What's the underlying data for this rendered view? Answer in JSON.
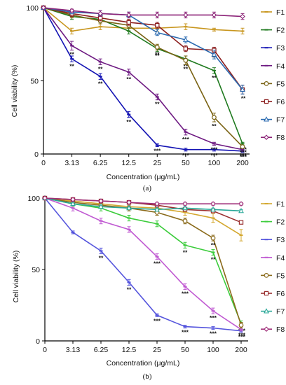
{
  "chart_data": [
    {
      "type": "line",
      "panel_label": "(a)",
      "xlabel": "Concentration (μg/mL)",
      "ylabel": "Cell viability (%)",
      "categories": [
        "0",
        "3.13",
        "6.25",
        "12.5",
        "25",
        "50",
        "100",
        "200"
      ],
      "ylim": [
        0,
        100
      ],
      "yticks": [
        0,
        50,
        100
      ],
      "grid": false,
      "legend_position": "right",
      "series": [
        {
          "name": "F1",
          "color": "#c8961e",
          "marker": "line",
          "values": [
            100,
            84,
            87,
            86,
            86,
            87,
            85,
            84
          ],
          "errors": [
            0,
            2,
            2,
            2,
            2,
            2,
            1,
            2
          ],
          "labels": [
            "",
            "",
            "",
            "",
            "",
            "",
            "",
            ""
          ]
        },
        {
          "name": "F2",
          "color": "#1f7a1f",
          "marker": "line",
          "values": [
            100,
            94,
            92,
            84,
            72,
            65,
            57,
            7
          ],
          "errors": [
            0,
            2,
            2,
            2,
            2,
            2,
            2,
            1
          ],
          "labels": [
            "",
            "",
            "",
            "",
            "**",
            "**",
            "**",
            "***"
          ]
        },
        {
          "name": "F3",
          "color": "#1414b4",
          "marker": "line",
          "values": [
            100,
            65,
            53,
            27,
            6,
            3,
            3,
            2
          ],
          "errors": [
            0,
            2,
            2,
            2,
            1,
            1,
            1,
            1
          ],
          "labels": [
            "",
            "**",
            "**",
            "**",
            "***",
            "***",
            "***",
            "***"
          ]
        },
        {
          "name": "F4",
          "color": "#6e1a82",
          "marker": "line",
          "values": [
            100,
            74,
            63,
            56,
            39,
            15,
            7,
            3
          ],
          "errors": [
            0,
            3,
            2,
            2,
            2,
            2,
            1,
            1
          ],
          "labels": [
            "",
            "**",
            "**",
            "**",
            "**",
            "***",
            "***",
            "***"
          ]
        },
        {
          "name": "F5",
          "color": "#7a6314",
          "marker": "circle",
          "values": [
            100,
            95,
            91,
            88,
            73,
            64,
            25,
            5
          ],
          "errors": [
            0,
            2,
            2,
            2,
            2,
            3,
            3,
            1
          ],
          "labels": [
            "",
            "",
            "",
            "",
            "**",
            "**",
            "**",
            "***"
          ]
        },
        {
          "name": "F6",
          "color": "#8c1e1e",
          "marker": "square",
          "values": [
            100,
            96,
            93,
            90,
            88,
            72,
            71,
            44
          ],
          "errors": [
            0,
            2,
            2,
            2,
            2,
            2,
            2,
            3
          ],
          "labels": [
            "",
            "",
            "",
            "",
            "",
            "",
            "**",
            "**"
          ]
        },
        {
          "name": "F7",
          "color": "#2a6ab0",
          "marker": "triangle",
          "values": [
            100,
            97,
            96,
            95,
            83,
            78,
            68,
            44
          ],
          "errors": [
            0,
            1,
            2,
            2,
            2,
            2,
            3,
            3
          ],
          "labels": [
            "",
            "",
            "",
            "",
            "",
            "",
            "",
            ""
          ]
        },
        {
          "name": "F8",
          "color": "#8c2478",
          "marker": "diamond",
          "values": [
            100,
            98,
            96,
            95,
            95,
            95,
            95,
            94
          ],
          "errors": [
            0,
            1,
            2,
            2,
            2,
            2,
            2,
            2
          ],
          "labels": [
            "",
            "",
            "",
            "",
            "",
            "",
            "",
            ""
          ]
        }
      ]
    },
    {
      "type": "line",
      "panel_label": "(b)",
      "xlabel": "Concentration (μg/mL)",
      "ylabel": "Cell viability (%)",
      "categories": [
        "0",
        "3.13",
        "6.25",
        "12.5",
        "25",
        "50",
        "100",
        "200"
      ],
      "ylim": [
        0,
        100
      ],
      "yticks": [
        0,
        50,
        100
      ],
      "grid": false,
      "legend_position": "right",
      "series": [
        {
          "name": "F1",
          "color": "#d4a830",
          "marker": "line",
          "values": [
            100,
            98,
            96,
            94,
            93,
            90,
            86,
            74
          ],
          "errors": [
            0,
            1,
            1,
            2,
            2,
            2,
            3,
            4
          ],
          "labels": [
            "",
            "",
            "",
            "",
            "",
            "",
            "",
            ""
          ]
        },
        {
          "name": "F2",
          "color": "#3ccc3c",
          "marker": "line",
          "values": [
            100,
            96,
            93,
            86,
            82,
            67,
            62,
            12
          ],
          "errors": [
            0,
            2,
            2,
            2,
            2,
            2,
            2,
            2
          ],
          "labels": [
            "",
            "",
            "",
            "",
            "",
            "**",
            "**",
            "***"
          ]
        },
        {
          "name": "F3",
          "color": "#5555dd",
          "marker": "line",
          "values": [
            100,
            76,
            63,
            41,
            18,
            10,
            9,
            7
          ],
          "errors": [
            0,
            1,
            2,
            2,
            1,
            1,
            1,
            1
          ],
          "labels": [
            "",
            "",
            "**",
            "**",
            "***",
            "***",
            "***",
            "***"
          ]
        },
        {
          "name": "F4",
          "color": "#c05ad2",
          "marker": "line",
          "values": [
            100,
            93,
            84,
            78,
            59,
            38,
            21,
            8
          ],
          "errors": [
            0,
            2,
            2,
            2,
            2,
            2,
            2,
            1
          ],
          "labels": [
            "",
            "",
            "",
            "",
            "***",
            "***",
            "***",
            "***"
          ]
        },
        {
          "name": "F5",
          "color": "#8a6a1a",
          "marker": "circle",
          "values": [
            100,
            97,
            95,
            93,
            90,
            84,
            72,
            11
          ],
          "errors": [
            0,
            1,
            1,
            2,
            2,
            2,
            2,
            2
          ],
          "labels": [
            "",
            "",
            "",
            "",
            "",
            "",
            "**",
            ""
          ]
        },
        {
          "name": "F6",
          "color": "#9a3030",
          "marker": "square",
          "values": [
            100,
            99,
            98,
            97,
            95,
            92,
            91,
            83
          ],
          "errors": [
            0,
            1,
            1,
            1,
            1,
            1,
            1,
            1
          ],
          "labels": [
            "",
            "",
            "",
            "",
            "",
            "",
            "",
            ""
          ]
        },
        {
          "name": "F7",
          "color": "#2aa898",
          "marker": "triangle",
          "values": [
            100,
            96,
            94,
            93,
            92,
            93,
            92,
            91
          ],
          "errors": [
            0,
            1,
            1,
            1,
            1,
            1,
            1,
            1
          ],
          "labels": [
            "",
            "",
            "",
            "",
            "",
            "",
            "",
            ""
          ]
        },
        {
          "name": "F8",
          "color": "#a0307a",
          "marker": "diamond",
          "values": [
            100,
            99,
            98,
            97,
            96,
            96,
            96,
            96
          ],
          "errors": [
            0,
            1,
            1,
            1,
            1,
            1,
            1,
            1
          ],
          "labels": [
            "",
            "",
            "",
            "",
            "",
            "",
            "",
            ""
          ]
        }
      ]
    }
  ]
}
